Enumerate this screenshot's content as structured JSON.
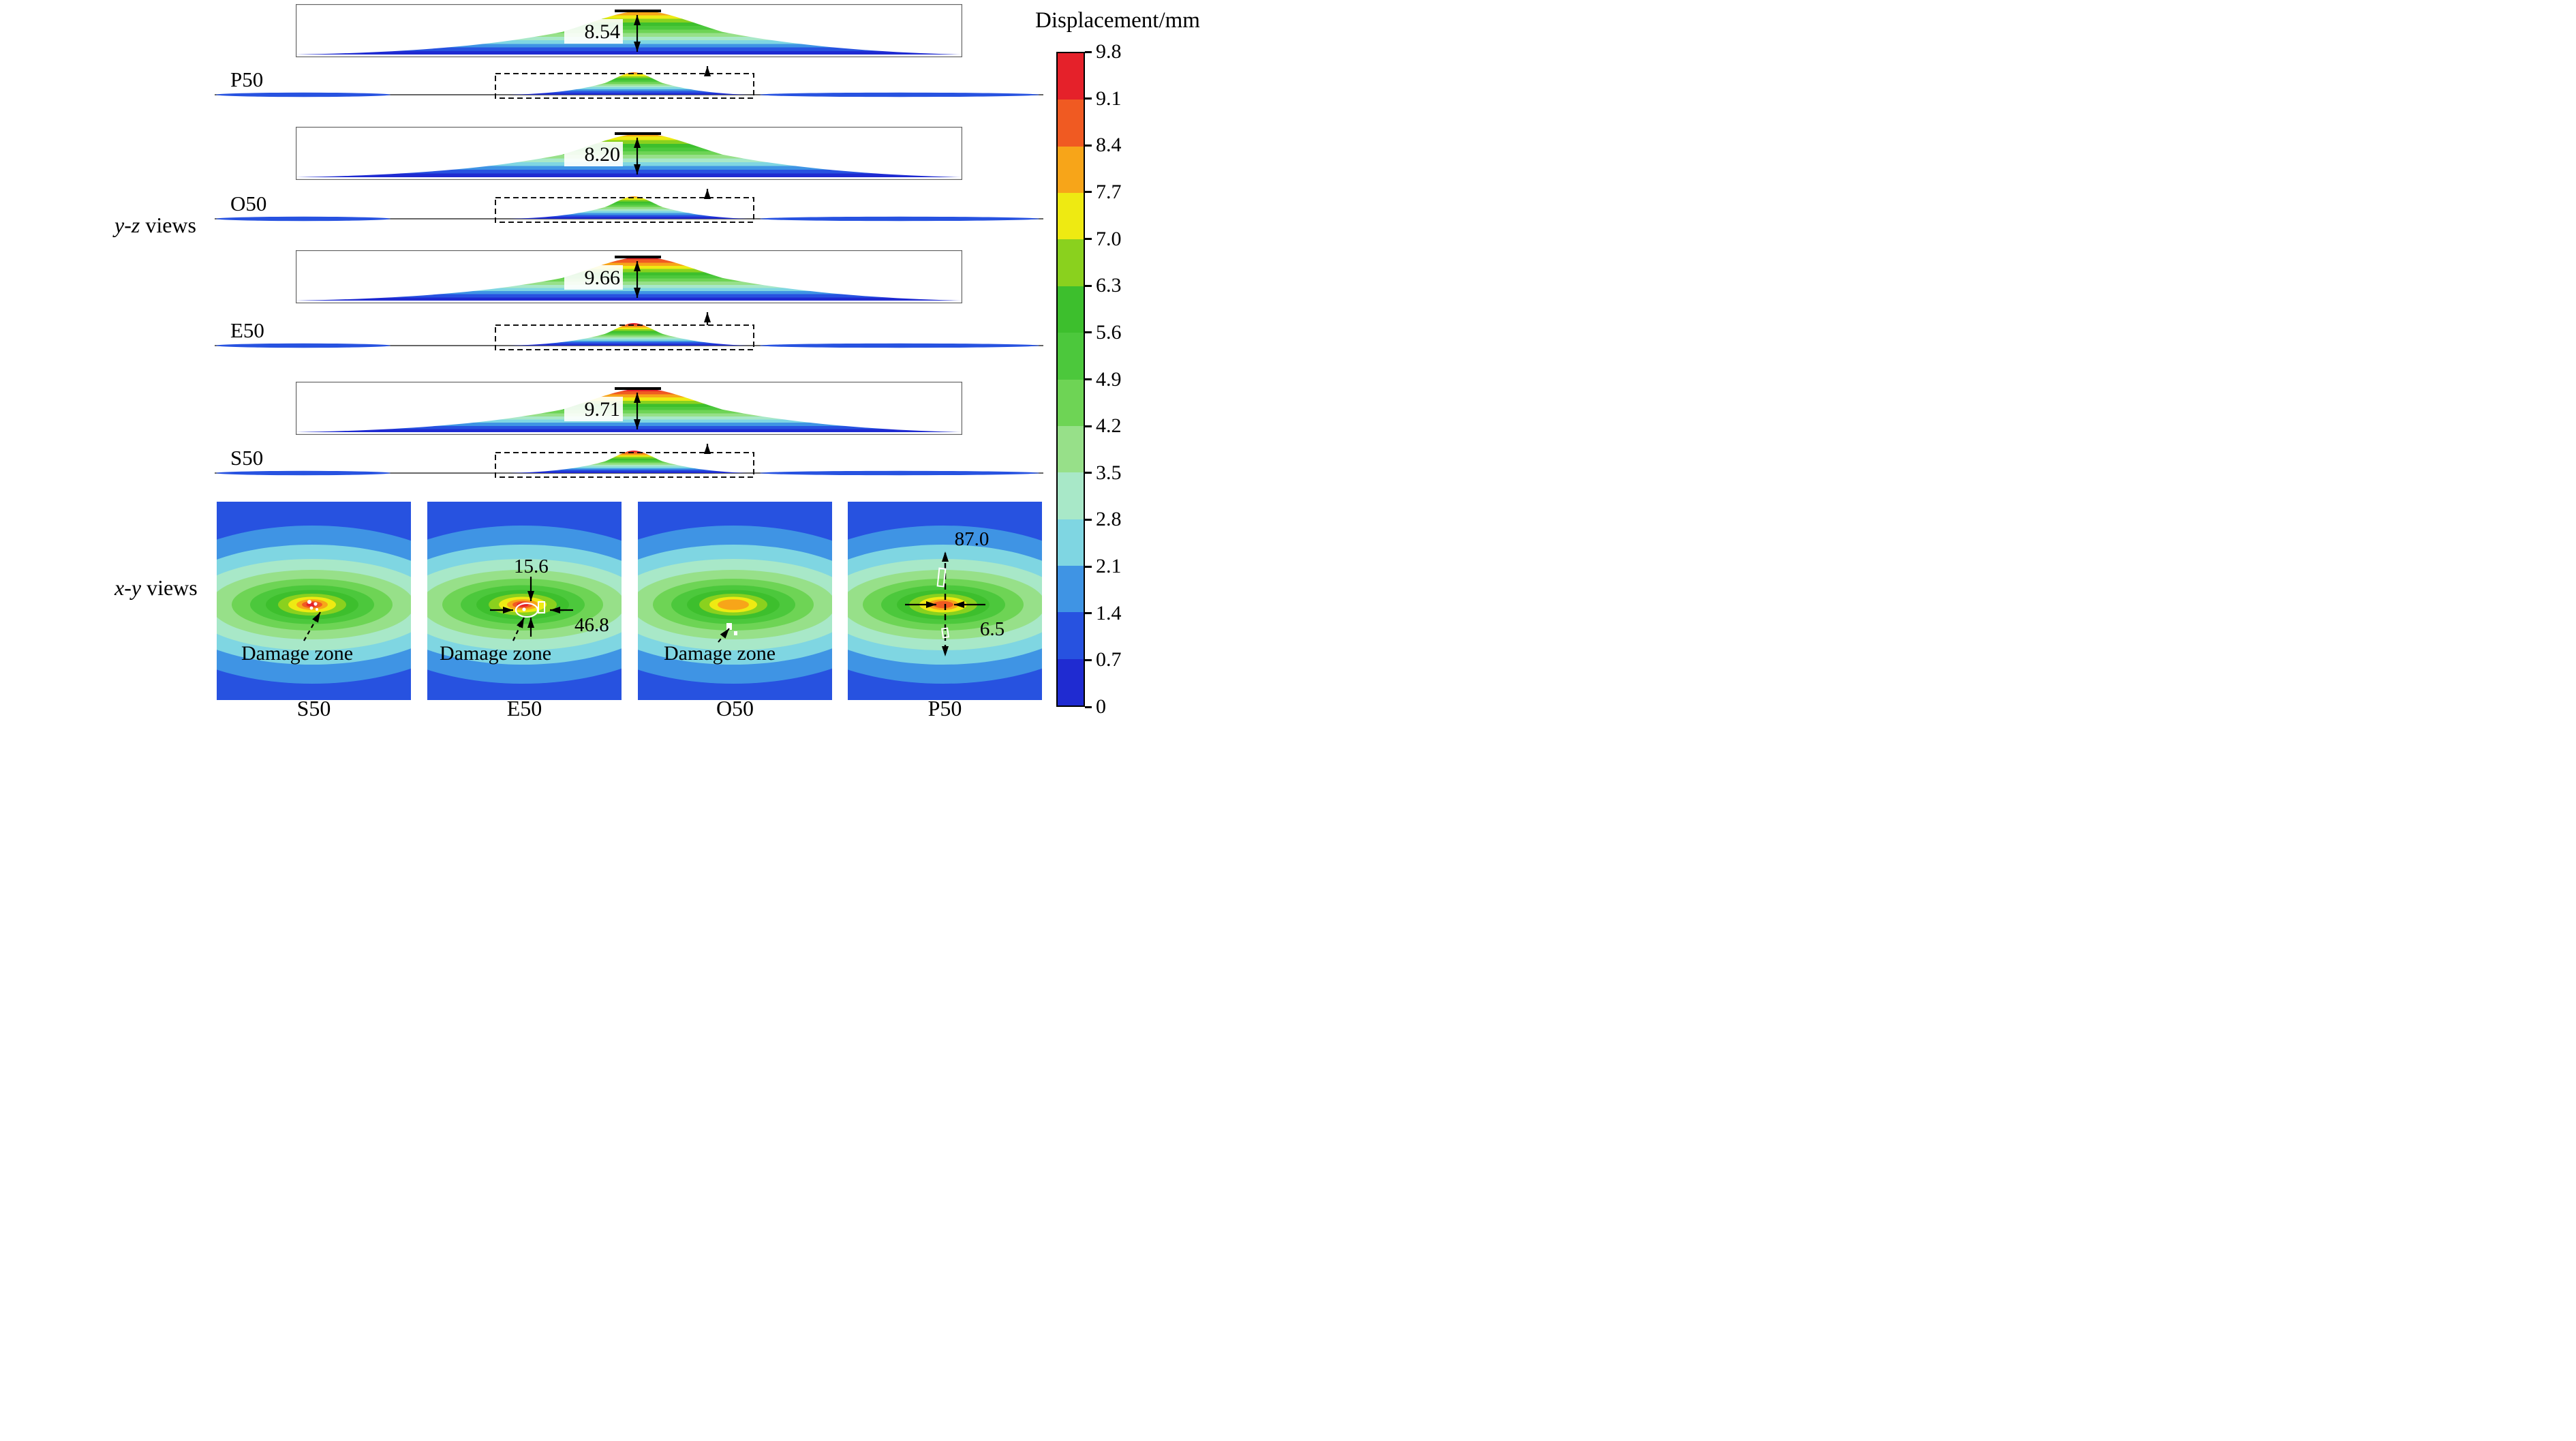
{
  "colorbar": {
    "title": "Displacement/mm",
    "ticks_top_to_bottom": [
      "9.8",
      "9.1",
      "8.4",
      "7.7",
      "7.0",
      "6.3",
      "5.6",
      "4.9",
      "4.2",
      "3.5",
      "2.8",
      "2.1",
      "1.4",
      "0.7",
      "0"
    ],
    "colors_low_to_high": [
      "#1f2bd1",
      "#2752e0",
      "#3f94e4",
      "#7fd6e2",
      "#a8e8c8",
      "#97e089",
      "#6ed455",
      "#4cc83c",
      "#3dbf2d",
      "#8ad11e",
      "#eeea12",
      "#f7a519",
      "#f05a22",
      "#e5212a"
    ]
  },
  "yz_section": {
    "label_italic": "y-z",
    "label_rest": " views",
    "groups": [
      {
        "name": "P50",
        "peak_label": "8.54",
        "peak_value": 8.54
      },
      {
        "name": "O50",
        "peak_label": "8.20",
        "peak_value": 8.2
      },
      {
        "name": "E50",
        "peak_label": "9.66",
        "peak_value": 9.66
      },
      {
        "name": "S50",
        "peak_label": "9.71",
        "peak_value": 9.71
      }
    ]
  },
  "xy_section": {
    "label_italic": "x-y",
    "label_rest": " views",
    "panels": [
      {
        "name": "S50",
        "max_value": 9.71,
        "damage_label": "Damage zone",
        "marks": "dots"
      },
      {
        "name": "E50",
        "max_value": 9.66,
        "damage_label": "Damage zone",
        "marks": "outline",
        "dim_height": "15.6",
        "dim_width": "46.8"
      },
      {
        "name": "O50",
        "max_value": 8.2,
        "damage_label": "Damage zone",
        "marks": "speck"
      },
      {
        "name": "P50",
        "max_value": 8.54,
        "marks": "dashed-line",
        "dim_length": "87.0",
        "dim_width": "6.5"
      }
    ]
  },
  "chart_data": {
    "type": "heatmap",
    "title": "Displacement/mm",
    "colorbar": {
      "min": 0,
      "max": 9.8,
      "step": 0.7,
      "ticks": [
        0,
        0.7,
        1.4,
        2.1,
        2.8,
        3.5,
        4.2,
        4.9,
        5.6,
        6.3,
        7.0,
        7.7,
        8.4,
        9.1,
        9.8
      ]
    },
    "views": {
      "yz_peak_displacement_mm": {
        "P50": 8.54,
        "O50": 8.2,
        "E50": 9.66,
        "S50": 9.71
      },
      "xy_damage_zone_dimensions": {
        "E50": {
          "height": 15.6,
          "width": 46.8
        },
        "P50": {
          "length": 87.0,
          "width": 6.5
        }
      }
    },
    "models_order_yz_top_to_bottom": [
      "P50",
      "O50",
      "E50",
      "S50"
    ],
    "models_order_xy_left_to_right": [
      "S50",
      "E50",
      "O50",
      "P50"
    ]
  }
}
